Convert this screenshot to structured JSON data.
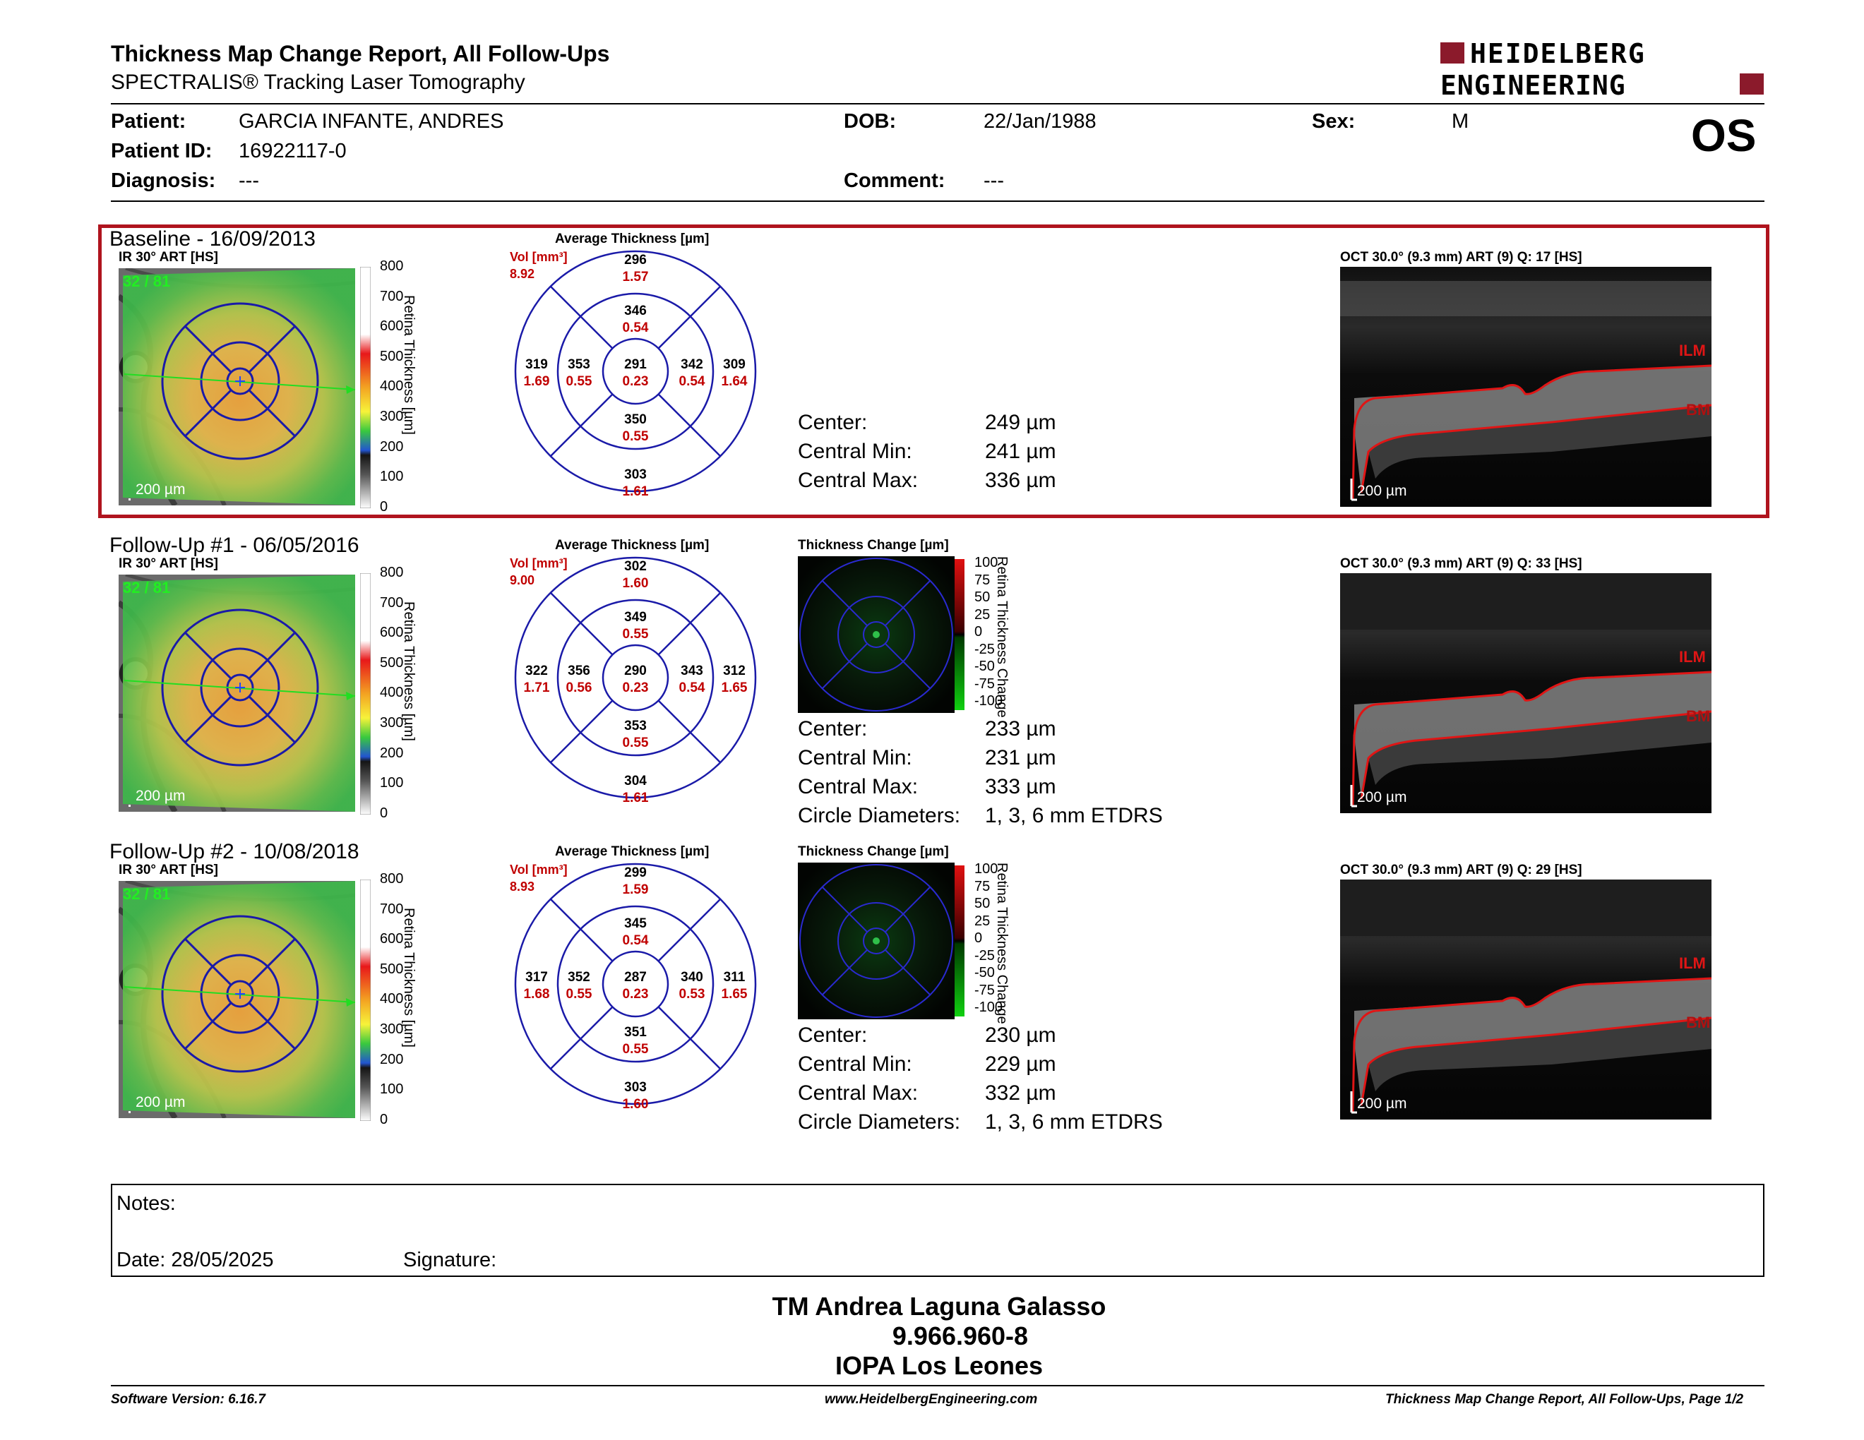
{
  "header": {
    "title": "Thickness Map Change Report, All Follow-Ups",
    "subtitle": "SPECTRALIS® Tracking Laser Tomography",
    "brand_line1": "HEIDELBERG",
    "brand_line2": "ENGINEERING",
    "brand_color": "#8b1a2b"
  },
  "patient": {
    "patient_label": "Patient:",
    "patient_value": "GARCIA INFANTE, ANDRES",
    "id_label": "Patient ID:",
    "id_value": "16922117-0",
    "diagnosis_label": "Diagnosis:",
    "diagnosis_value": "---",
    "dob_label": "DOB:",
    "dob_value": "22/Jan/1988",
    "comment_label": "Comment:",
    "comment_value": "---",
    "sex_label": "Sex:",
    "sex_value": "M",
    "eye": "OS"
  },
  "labels": {
    "ir": "IR 30° ART [HS]",
    "avg": "Average Thickness [µm]",
    "vol": "Vol [mm³]",
    "change": "Thickness Change [µm]",
    "scale": "200 µm",
    "fixation": "32 / 81",
    "cbar_title": "Retina Thickness [µm]",
    "change_bar_title": "Retina Thickness Change",
    "center": "Center:",
    "cmin": "Central Min:",
    "cmax": "Central Max:",
    "circ": "Circle Diameters:",
    "circ_value": "1, 3, 6 mm ETDRS",
    "ilm": "ILM",
    "bm": "BM"
  },
  "thickness_scale": [
    "800",
    "700",
    "600",
    "500",
    "400",
    "300",
    "200",
    "100",
    "0"
  ],
  "change_scale": [
    "100",
    "75",
    "50",
    "25",
    "0",
    "-25",
    "-50",
    "-75",
    "-100"
  ],
  "exams": [
    {
      "title": "Baseline - 16/09/2013",
      "vol": "8.92",
      "grid": {
        "center": [
          "291",
          "0.23"
        ],
        "inner_top": [
          "346",
          "0.54"
        ],
        "inner_bottom": [
          "350",
          "0.55"
        ],
        "inner_left": [
          "353",
          "0.55"
        ],
        "inner_right": [
          "342",
          "0.54"
        ],
        "outer_top": [
          "296",
          "1.57"
        ],
        "outer_bottom": [
          "303",
          "1.61"
        ],
        "outer_left": [
          "319",
          "1.69"
        ],
        "outer_right": [
          "309",
          "1.64"
        ]
      },
      "center": "249 µm",
      "cmin": "241 µm",
      "cmax": "336 µm",
      "oct": "OCT 30.0° (9.3 mm) ART (9) Q: 17 [HS]"
    },
    {
      "title": "Follow-Up #1 - 06/05/2016",
      "vol": "9.00",
      "grid": {
        "center": [
          "290",
          "0.23"
        ],
        "inner_top": [
          "349",
          "0.55"
        ],
        "inner_bottom": [
          "353",
          "0.55"
        ],
        "inner_left": [
          "356",
          "0.56"
        ],
        "inner_right": [
          "343",
          "0.54"
        ],
        "outer_top": [
          "302",
          "1.60"
        ],
        "outer_bottom": [
          "304",
          "1.61"
        ],
        "outer_left": [
          "322",
          "1.71"
        ],
        "outer_right": [
          "312",
          "1.65"
        ]
      },
      "center": "233 µm",
      "cmin": "231 µm",
      "cmax": "333 µm",
      "oct": "OCT 30.0° (9.3 mm) ART (9) Q: 33 [HS]"
    },
    {
      "title": "Follow-Up #2 - 10/08/2018",
      "vol": "8.93",
      "grid": {
        "center": [
          "287",
          "0.23"
        ],
        "inner_top": [
          "345",
          "0.54"
        ],
        "inner_bottom": [
          "351",
          "0.55"
        ],
        "inner_left": [
          "352",
          "0.55"
        ],
        "inner_right": [
          "340",
          "0.53"
        ],
        "outer_top": [
          "299",
          "1.59"
        ],
        "outer_bottom": [
          "303",
          "1.60"
        ],
        "outer_left": [
          "317",
          "1.68"
        ],
        "outer_right": [
          "311",
          "1.65"
        ]
      },
      "center": "230 µm",
      "cmin": "229 µm",
      "cmax": "332 µm",
      "oct": "OCT 30.0° (9.3 mm) ART (9) Q: 29 [HS]"
    }
  ],
  "notes": {
    "notes_label": "Notes:",
    "date_label": "Date: 28/05/2025",
    "signature_label": "Signature:"
  },
  "signature": {
    "name": "TM Andrea Laguna Galasso",
    "id": "9.966.960-8",
    "org": "IOPA Los Leones"
  },
  "footer": {
    "software": "Software Version: 6.16.7",
    "url": "www.HeidelbergEngineering.com",
    "page": "Thickness Map Change Report, All Follow-Ups, Page 1/2"
  }
}
